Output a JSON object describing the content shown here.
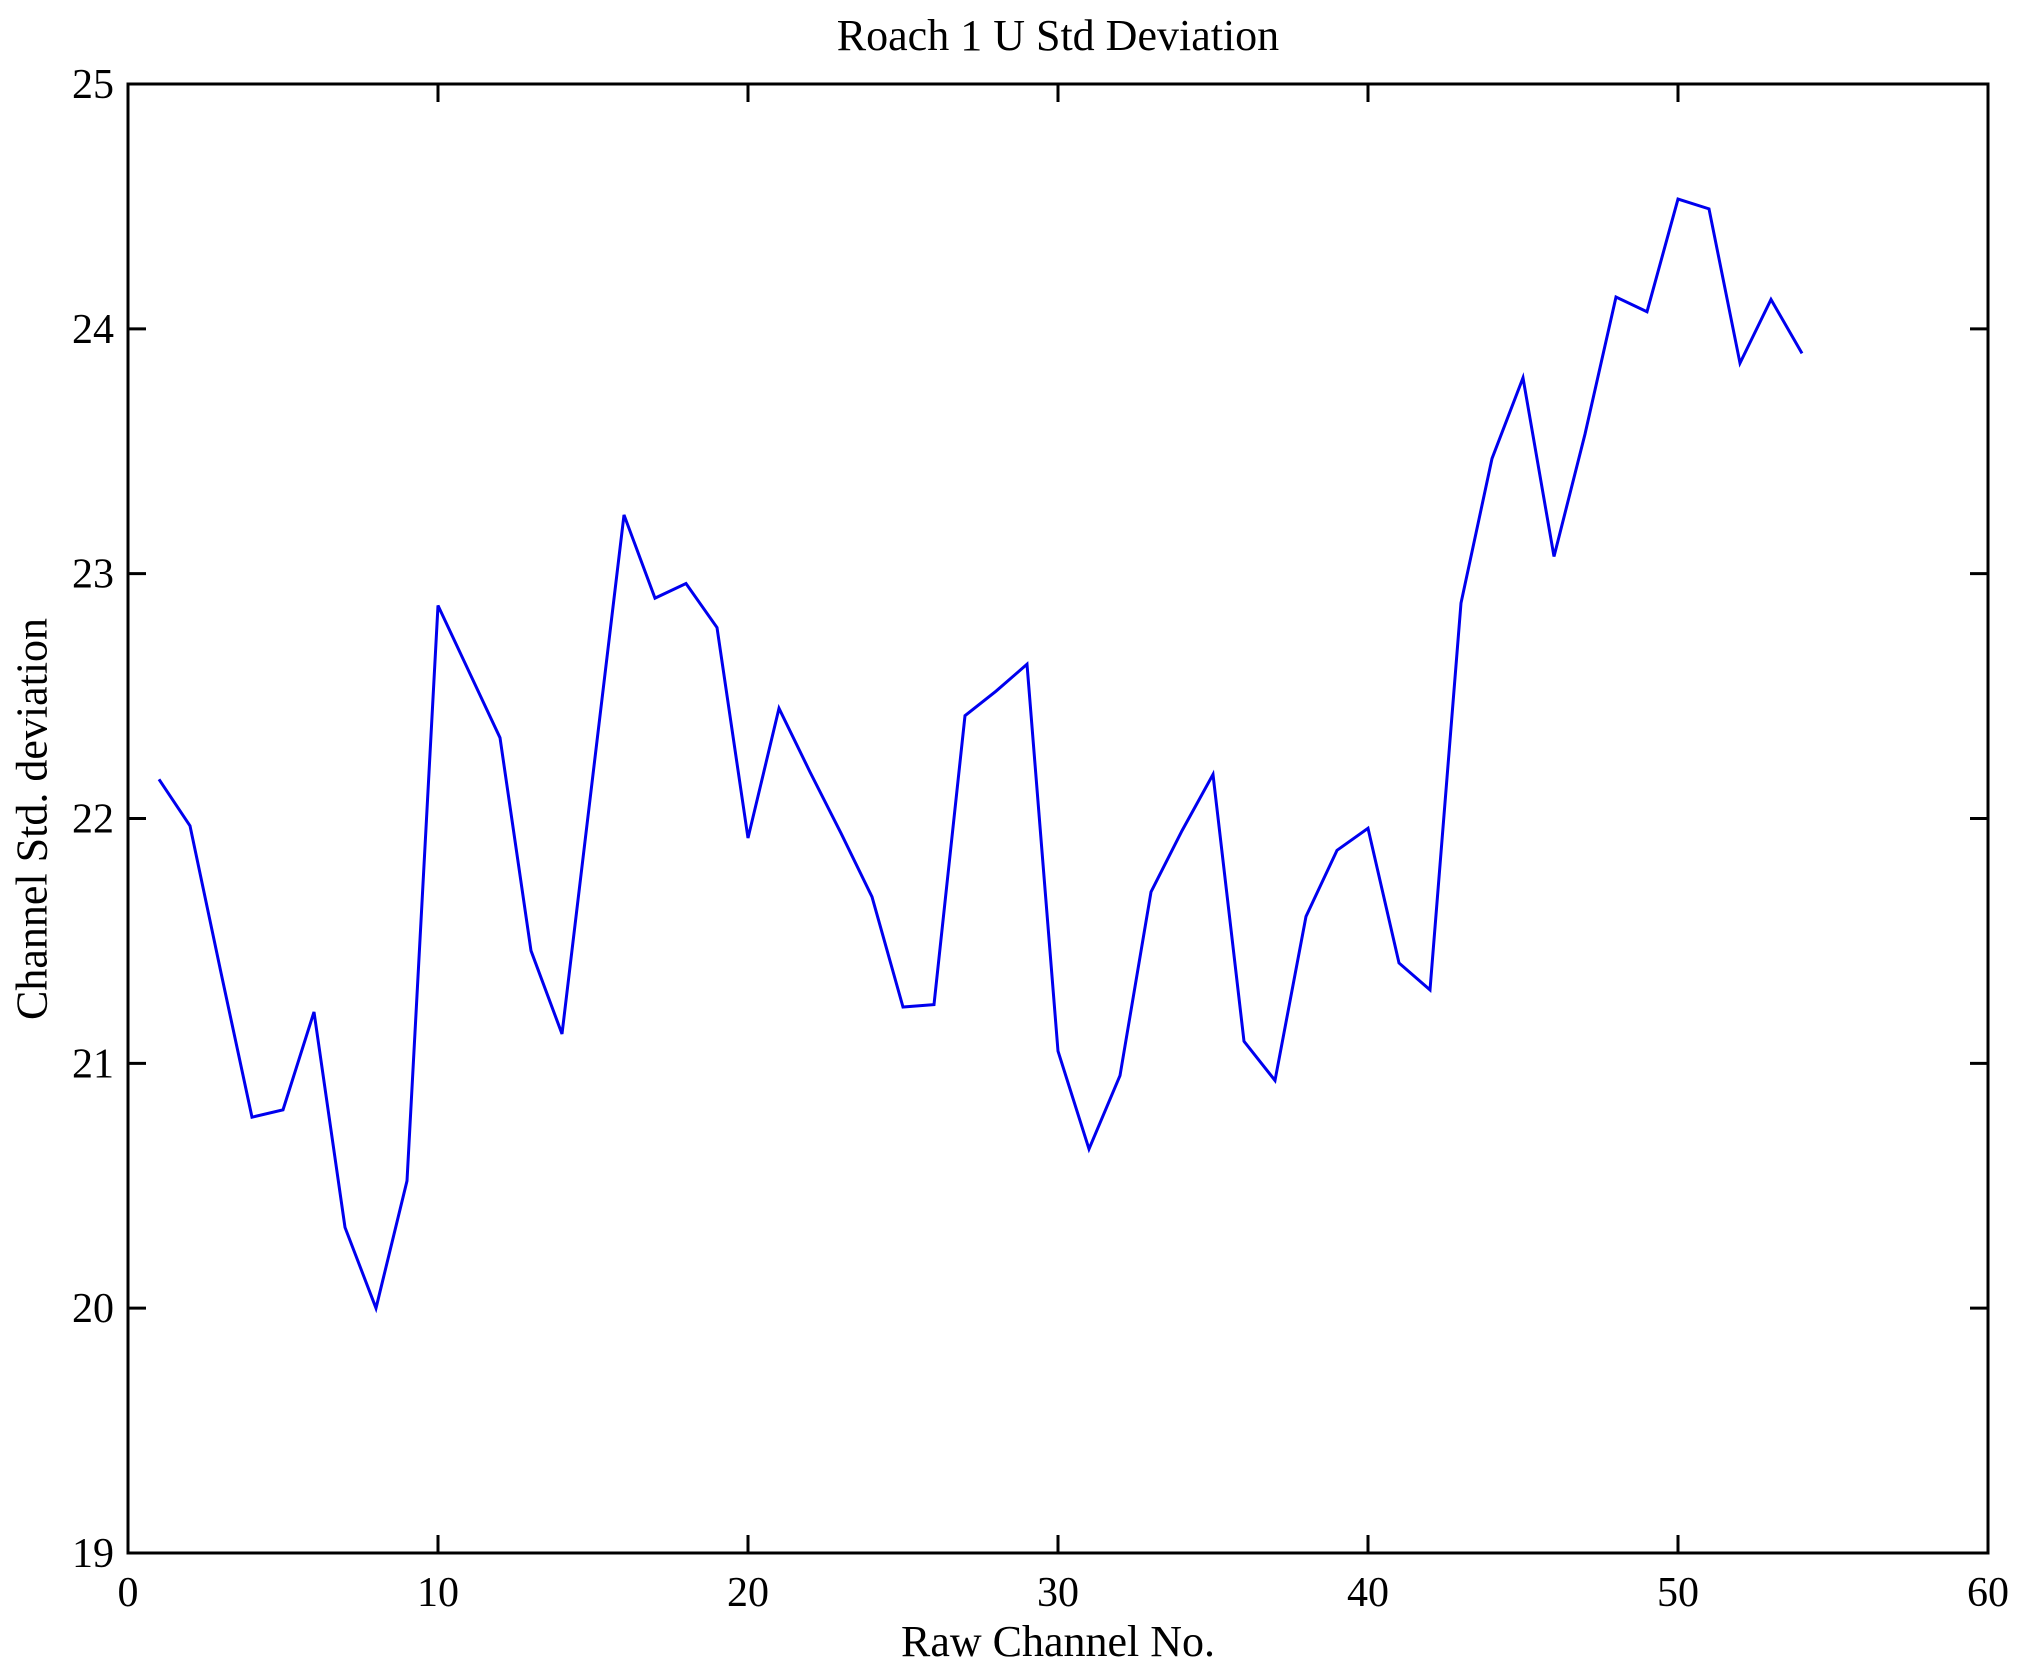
{
  "figure": {
    "title": "Roach 1 U Std Deviation",
    "xlabel": "Raw Channel No.",
    "ylabel": "Channel Std. deviation"
  },
  "chart_data": {
    "type": "line",
    "title": "Roach 1 U Std Deviation",
    "xlabel": "Raw Channel No.",
    "ylabel": "Channel Std. deviation",
    "x": [
      1,
      2,
      3,
      4,
      5,
      6,
      7,
      8,
      9,
      10,
      11,
      12,
      13,
      14,
      15,
      16,
      17,
      18,
      19,
      20,
      21,
      22,
      23,
      24,
      25,
      26,
      27,
      28,
      29,
      30,
      31,
      32,
      33,
      34,
      35,
      36,
      37,
      38,
      39,
      40,
      41,
      42,
      43,
      44,
      45,
      46,
      47,
      48,
      49,
      50,
      51,
      52,
      53,
      54
    ],
    "values": [
      22.16,
      21.97,
      21.37,
      20.78,
      20.81,
      21.21,
      20.33,
      20.0,
      20.52,
      22.87,
      22.6,
      22.33,
      21.46,
      21.12,
      22.18,
      23.24,
      22.9,
      22.96,
      22.78,
      21.92,
      22.45,
      22.19,
      21.94,
      21.68,
      21.23,
      21.24,
      22.42,
      22.52,
      22.63,
      21.05,
      20.65,
      20.95,
      21.7,
      21.95,
      22.18,
      21.09,
      20.93,
      21.6,
      21.87,
      21.96,
      21.41,
      21.3,
      22.88,
      23.47,
      23.8,
      23.07,
      23.57,
      24.13,
      24.07,
      24.53,
      24.49,
      23.86,
      24.12,
      23.9
    ],
    "xlim": [
      0,
      60
    ],
    "ylim": [
      19,
      25
    ],
    "xticks": [
      0,
      10,
      20,
      30,
      40,
      50,
      60
    ],
    "yticks": [
      19,
      20,
      21,
      22,
      23,
      24,
      25
    ],
    "grid": false,
    "legend": "none",
    "line_color": "#0000EE",
    "axis_color": "#000000",
    "background_color": "#FFFFFF"
  }
}
